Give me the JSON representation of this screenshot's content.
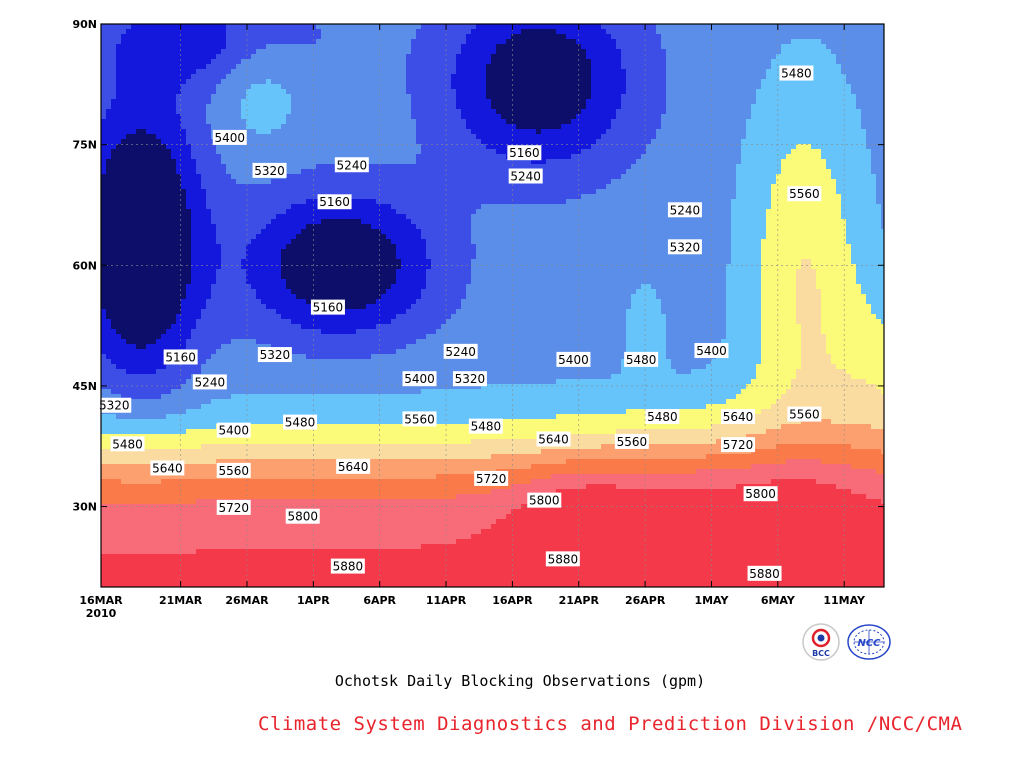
{
  "chart_data": {
    "type": "heatmap",
    "title": "Ochotsk Daily Blocking Observations (gpm)",
    "credit": "Climate System Diagnostics and Prediction Division /NCC/CMA",
    "xlabel": "",
    "ylabel": "",
    "x_ticks": [
      "16MAR",
      "21MAR",
      "26MAR",
      "1APR",
      "6APR",
      "11APR",
      "16APR",
      "21APR",
      "26APR",
      "1MAY",
      "6MAY",
      "11MAY"
    ],
    "x_year_label": "2010",
    "y_ticks": [
      "30N",
      "45N",
      "60N",
      "75N",
      "90N"
    ],
    "xlim_days": [
      0,
      59
    ],
    "ylim_lat": [
      20,
      90
    ],
    "contour_interval": 80,
    "levels": [
      5160,
      5240,
      5320,
      5400,
      5480,
      5560,
      5640,
      5720,
      5800,
      5880
    ],
    "level_colors": [
      "#0c0e6a",
      "#1417dc",
      "#3c4ee6",
      "#5b8ee8",
      "#66c4fb",
      "#fbfb79",
      "#fbdca0",
      "#fba06e",
      "#fb7a4a",
      "#f76c78",
      "#f43a4a"
    ],
    "contour_labels": [
      {
        "text": "5400",
        "day": 9.7,
        "lat": 75.9
      },
      {
        "text": "5320",
        "day": 12.7,
        "lat": 71.8
      },
      {
        "text": "5240",
        "day": 18.9,
        "lat": 72.5
      },
      {
        "text": "5160",
        "day": 17.6,
        "lat": 67.9
      },
      {
        "text": "5160",
        "day": 31.9,
        "lat": 74.0
      },
      {
        "text": "5240",
        "day": 32.0,
        "lat": 71.1
      },
      {
        "text": "5240",
        "day": 44.0,
        "lat": 66.9
      },
      {
        "text": "5320",
        "day": 44.0,
        "lat": 62.3
      },
      {
        "text": "5480",
        "day": 52.4,
        "lat": 83.9
      },
      {
        "text": "5560",
        "day": 53.0,
        "lat": 68.9
      },
      {
        "text": "5160",
        "day": 17.1,
        "lat": 54.8
      },
      {
        "text": "5160",
        "day": 6.0,
        "lat": 48.6
      },
      {
        "text": "5320",
        "day": 13.1,
        "lat": 48.9
      },
      {
        "text": "5240",
        "day": 27.1,
        "lat": 49.3
      },
      {
        "text": "5240",
        "day": 8.2,
        "lat": 45.5
      },
      {
        "text": "5400",
        "day": 35.6,
        "lat": 48.3
      },
      {
        "text": "5480",
        "day": 40.7,
        "lat": 48.3
      },
      {
        "text": "5400",
        "day": 46.0,
        "lat": 49.4
      },
      {
        "text": "5400",
        "day": 24.0,
        "lat": 45.9
      },
      {
        "text": "5320",
        "day": 27.8,
        "lat": 45.9
      },
      {
        "text": "5320",
        "day": 1.0,
        "lat": 42.6
      },
      {
        "text": "5400",
        "day": 10.0,
        "lat": 39.5
      },
      {
        "text": "5480",
        "day": 15.0,
        "lat": 40.5
      },
      {
        "text": "5560",
        "day": 24.0,
        "lat": 40.9
      },
      {
        "text": "5480",
        "day": 29.0,
        "lat": 40.0
      },
      {
        "text": "5480",
        "day": 42.3,
        "lat": 41.2
      },
      {
        "text": "5640",
        "day": 48.0,
        "lat": 41.2
      },
      {
        "text": "5560",
        "day": 53.0,
        "lat": 41.5
      },
      {
        "text": "5480",
        "day": 2.0,
        "lat": 37.8
      },
      {
        "text": "5640",
        "day": 34.1,
        "lat": 38.4
      },
      {
        "text": "5560",
        "day": 40.0,
        "lat": 38.1
      },
      {
        "text": "5720",
        "day": 48.0,
        "lat": 37.7
      },
      {
        "text": "5640",
        "day": 5.0,
        "lat": 34.8
      },
      {
        "text": "5560",
        "day": 10.0,
        "lat": 34.5
      },
      {
        "text": "5640",
        "day": 19.0,
        "lat": 35.0
      },
      {
        "text": "5720",
        "day": 29.4,
        "lat": 33.5
      },
      {
        "text": "5800",
        "day": 33.4,
        "lat": 30.8
      },
      {
        "text": "5720",
        "day": 10.0,
        "lat": 29.9
      },
      {
        "text": "5800",
        "day": 15.2,
        "lat": 28.8
      },
      {
        "text": "5800",
        "day": 49.7,
        "lat": 31.6
      },
      {
        "text": "5880",
        "day": 18.6,
        "lat": 22.6
      },
      {
        "text": "5880",
        "day": 34.8,
        "lat": 23.5
      },
      {
        "text": "5880",
        "day": 50.0,
        "lat": 21.7
      }
    ]
  },
  "logos": [
    {
      "name": "bcc-logo",
      "text": "BCC"
    },
    {
      "name": "ncc-logo",
      "text": "NCC"
    }
  ],
  "colors": {
    "credit": "#e8242c",
    "frame": "#000000"
  }
}
